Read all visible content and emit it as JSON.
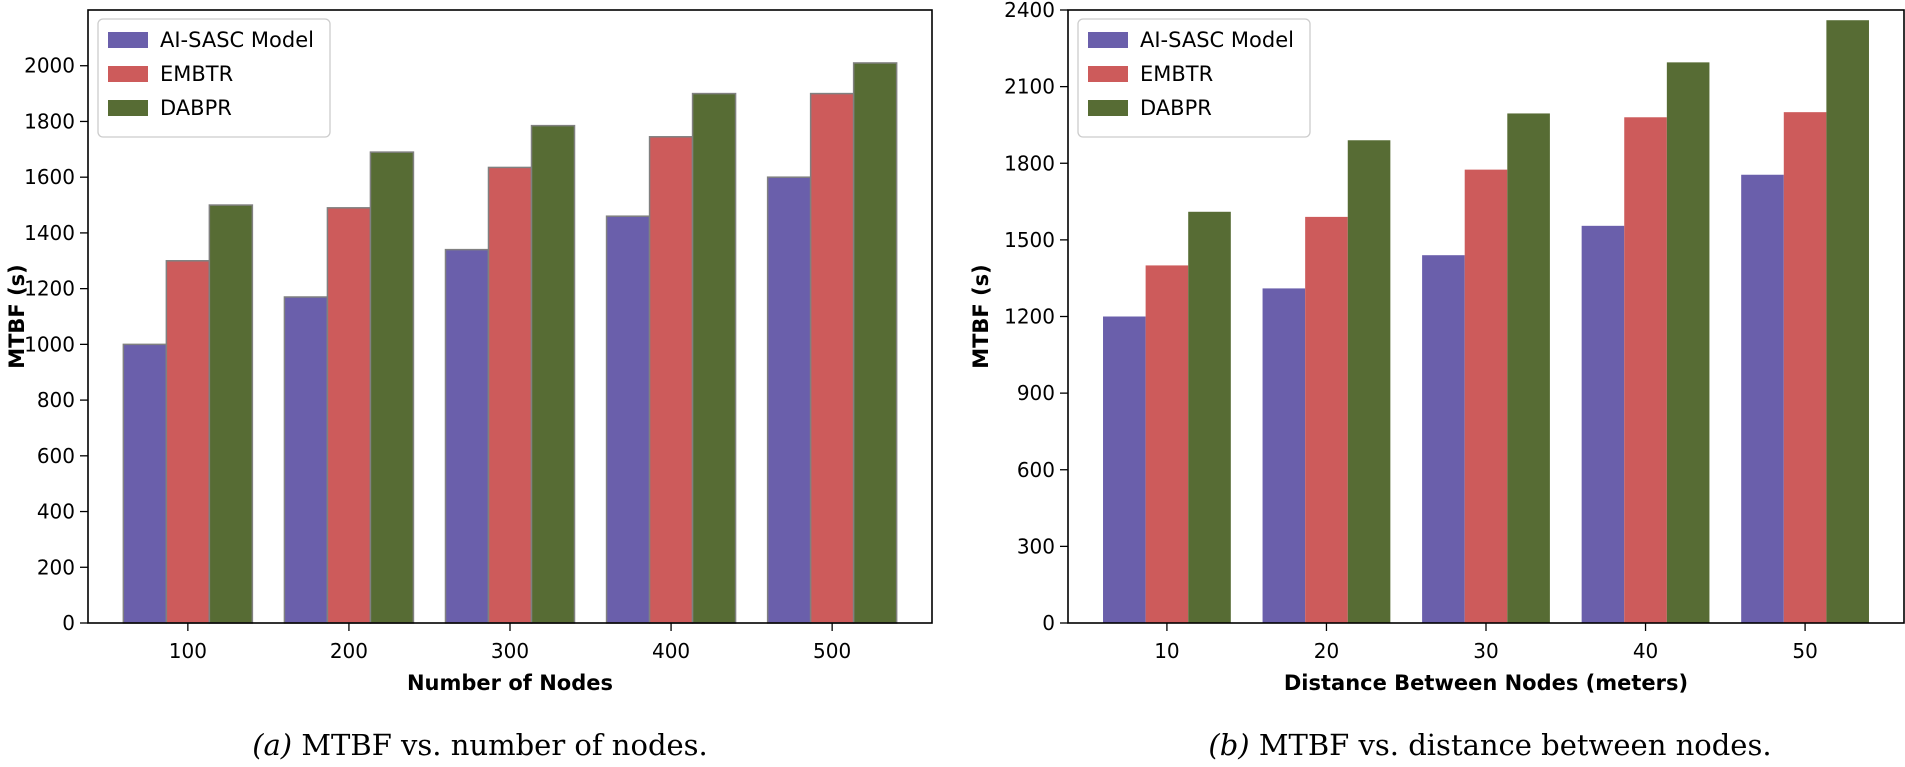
{
  "chart_data": [
    {
      "type": "bar",
      "title": "",
      "xlabel": "Number of Nodes",
      "ylabel": "MTBF (s)",
      "categories": [
        "100",
        "200",
        "300",
        "400",
        "500"
      ],
      "ylim": [
        0,
        2200
      ],
      "yticks": [
        0,
        200,
        400,
        600,
        800,
        1000,
        1200,
        1400,
        1600,
        1800,
        2000
      ],
      "legend_position": "top-left",
      "series": [
        {
          "name": "AI-SASC Model",
          "color": "#6a5fab",
          "values": [
            1000,
            1170,
            1340,
            1460,
            1600
          ]
        },
        {
          "name": "EMBTR",
          "color": "#cd5b5b",
          "values": [
            1300,
            1490,
            1635,
            1745,
            1900
          ]
        },
        {
          "name": "DABPR",
          "color": "#576c34",
          "values": [
            1500,
            1690,
            1785,
            1900,
            2010
          ]
        }
      ],
      "caption_label": "(a)",
      "caption_text": " MTBF vs. number of nodes."
    },
    {
      "type": "bar",
      "title": "",
      "xlabel": "Distance Between Nodes (meters)",
      "ylabel": "MTBF (s)",
      "categories": [
        "10",
        "20",
        "30",
        "40",
        "50"
      ],
      "ylim": [
        0,
        2400
      ],
      "yticks": [
        0,
        300,
        600,
        900,
        1200,
        1500,
        1800,
        2100,
        2400
      ],
      "legend_position": "top-left",
      "series": [
        {
          "name": "AI-SASC Model",
          "color": "#6a5fab",
          "values": [
            1200,
            1310,
            1440,
            1555,
            1755
          ]
        },
        {
          "name": "EMBTR",
          "color": "#cd5b5b",
          "values": [
            1400,
            1590,
            1775,
            1980,
            2000
          ]
        },
        {
          "name": "DABPR",
          "color": "#576c34",
          "values": [
            1610,
            1890,
            1995,
            2195,
            2360
          ]
        }
      ],
      "caption_label": "(b)",
      "caption_text": " MTBF vs. distance between nodes."
    }
  ]
}
